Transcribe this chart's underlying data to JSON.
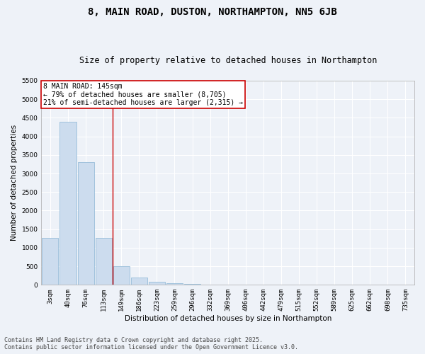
{
  "title": "8, MAIN ROAD, DUSTON, NORTHAMPTON, NN5 6JB",
  "subtitle": "Size of property relative to detached houses in Northampton",
  "xlabel": "Distribution of detached houses by size in Northampton",
  "ylabel": "Number of detached properties",
  "categories": [
    "3sqm",
    "40sqm",
    "76sqm",
    "113sqm",
    "149sqm",
    "186sqm",
    "223sqm",
    "259sqm",
    "296sqm",
    "332sqm",
    "369sqm",
    "406sqm",
    "442sqm",
    "479sqm",
    "515sqm",
    "552sqm",
    "589sqm",
    "625sqm",
    "662sqm",
    "698sqm",
    "735sqm"
  ],
  "values": [
    1270,
    4400,
    3300,
    1270,
    500,
    200,
    85,
    50,
    30,
    0,
    0,
    0,
    0,
    0,
    0,
    0,
    0,
    0,
    0,
    0,
    0
  ],
  "bar_color": "#ccdcee",
  "bar_edge_color": "#8ab4d4",
  "property_line_index": 4,
  "property_line_color": "#cc0000",
  "ylim": [
    0,
    5500
  ],
  "yticks": [
    0,
    500,
    1000,
    1500,
    2000,
    2500,
    3000,
    3500,
    4000,
    4500,
    5000,
    5500
  ],
  "annotation_text": "8 MAIN ROAD: 145sqm\n← 79% of detached houses are smaller (8,705)\n21% of semi-detached houses are larger (2,315) →",
  "annotation_box_facecolor": "#ffffff",
  "annotation_box_edgecolor": "#cc0000",
  "footer_line1": "Contains HM Land Registry data © Crown copyright and database right 2025.",
  "footer_line2": "Contains public sector information licensed under the Open Government Licence v3.0.",
  "background_color": "#eef2f8",
  "grid_color": "#ffffff",
  "title_fontsize": 10,
  "subtitle_fontsize": 8.5,
  "axis_label_fontsize": 7.5,
  "tick_fontsize": 6.5,
  "annotation_fontsize": 7,
  "footer_fontsize": 6
}
